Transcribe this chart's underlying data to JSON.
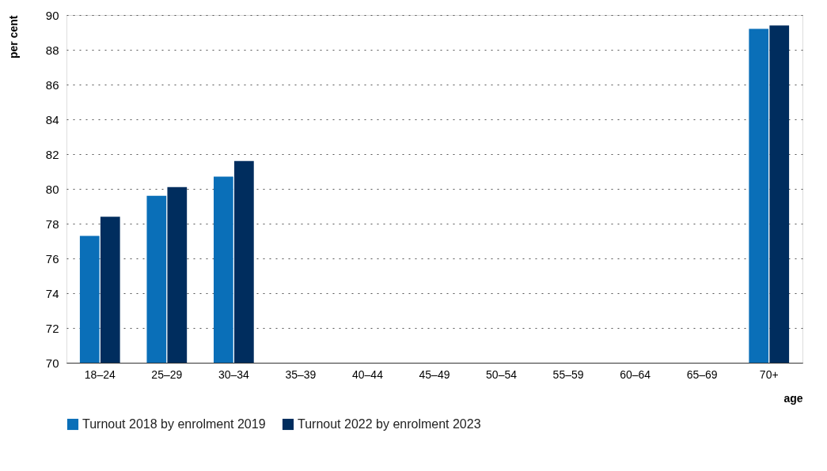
{
  "chart_data": {
    "type": "bar",
    "xlabel": "age",
    "ylabel": "per cent",
    "categories": [
      "18–24",
      "25–29",
      "30–34",
      "35–39",
      "40–44",
      "45–49",
      "50–54",
      "55–59",
      "60–64",
      "65–69",
      "70+"
    ],
    "series": [
      {
        "name": "Turnout 2018 by enrolment 2019",
        "color": "#0a6fb8",
        "values": [
          77.3,
          79.6,
          80.7,
          null,
          null,
          null,
          null,
          null,
          null,
          null,
          89.2
        ]
      },
      {
        "name": "Turnout 2022 by enrolment 2023",
        "color": "#002d5e",
        "values": [
          78.4,
          80.1,
          81.6,
          null,
          null,
          null,
          null,
          null,
          null,
          null,
          89.4
        ]
      }
    ],
    "ylim": [
      70,
      90
    ],
    "yticks": [
      70,
      72,
      74,
      76,
      78,
      80,
      82,
      84,
      86,
      88,
      90
    ],
    "grid": "y",
    "legend": "bottom"
  }
}
